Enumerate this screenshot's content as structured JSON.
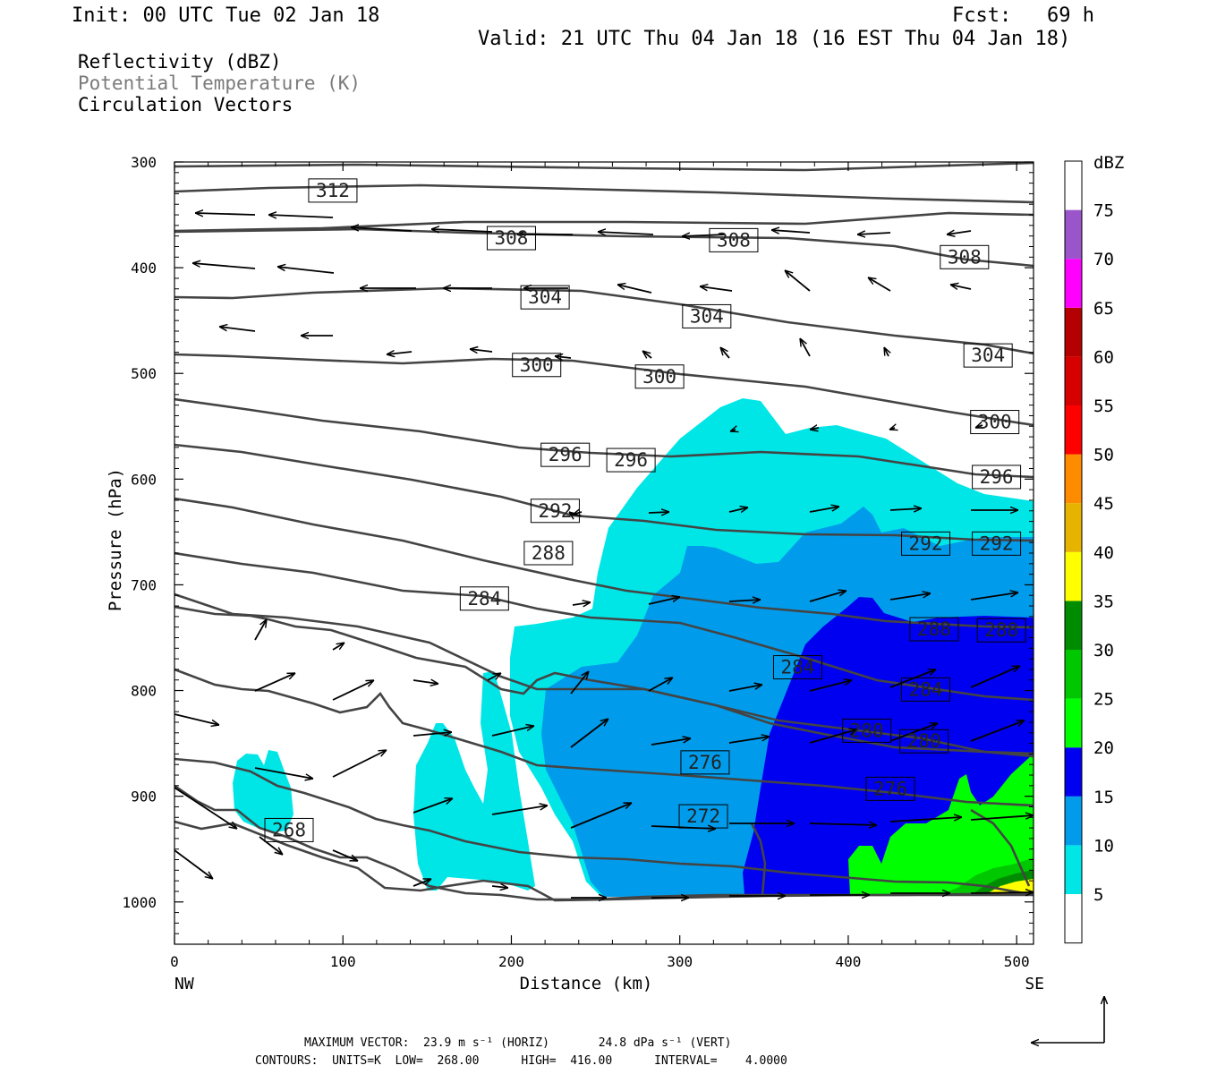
{
  "header": {
    "init": "Init: 00 UTC Tue 02 Jan 18",
    "fcst": "Fcst:   69 h",
    "valid": "Valid: 21 UTC Thu 04 Jan 18 (16 EST Thu 04 Jan 18)"
  },
  "legend": {
    "line1": "Reflectivity (dBZ)",
    "line2": "Potential Temperature (K)",
    "line3": "Circulation Vectors",
    "line2_color": "#7a7a7a"
  },
  "footer": {
    "line1": "MAXIMUM VECTOR:  23.9 m s⁻¹ (HORIZ)       24.8 dPa s⁻¹ (VERT)",
    "line2": "CONTOURS:  UNITS=K  LOW=  268.00      HIGH=  416.00      INTERVAL=    4.0000"
  },
  "chart_data": {
    "type": "cross-section",
    "xlabel": "Distance (km)",
    "ylabel": "Pressure (hPa)",
    "xlim": [
      0,
      510
    ],
    "ylim": [
      1040,
      300
    ],
    "x_ticks": [
      0,
      100,
      200,
      300,
      400,
      500
    ],
    "y_ticks": [
      300,
      400,
      500,
      600,
      700,
      800,
      900,
      1000
    ],
    "x_end_labels": {
      "left": "NW",
      "right": "SE"
    },
    "colorbar": {
      "unit": "dBZ",
      "levels": [
        5,
        10,
        15,
        20,
        25,
        30,
        35,
        40,
        45,
        50,
        55,
        60,
        65,
        70,
        75
      ],
      "colors": [
        "#ffffff",
        "#00e6e6",
        "#009ceb",
        "#0000f0",
        "#00ff00",
        "#00c800",
        "#008c00",
        "#ffff00",
        "#e6b400",
        "#ff8c00",
        "#ff0000",
        "#d60000",
        "#b40000",
        "#ff00ff",
        "#9955c9",
        "#ffffff"
      ]
    },
    "theta_labels": [
      {
        "value": "312",
        "x": 94,
        "p": 327
      },
      {
        "value": "308",
        "x": 200,
        "p": 372
      },
      {
        "value": "308",
        "x": 332,
        "p": 374
      },
      {
        "value": "308",
        "x": 469,
        "p": 390
      },
      {
        "value": "304",
        "x": 220,
        "p": 428
      },
      {
        "value": "304",
        "x": 316,
        "p": 446
      },
      {
        "value": "304",
        "x": 483,
        "p": 483
      },
      {
        "value": "300",
        "x": 215,
        "p": 492
      },
      {
        "value": "300",
        "x": 288,
        "p": 503
      },
      {
        "value": "300",
        "x": 487,
        "p": 546
      },
      {
        "value": "296",
        "x": 232,
        "p": 577
      },
      {
        "value": "296",
        "x": 271,
        "p": 582
      },
      {
        "value": "296",
        "x": 488,
        "p": 598
      },
      {
        "value": "292",
        "x": 226,
        "p": 630
      },
      {
        "value": "292",
        "x": 446,
        "p": 661
      },
      {
        "value": "292",
        "x": 488,
        "p": 661
      },
      {
        "value": "288",
        "x": 222,
        "p": 670
      },
      {
        "value": "288",
        "x": 451,
        "p": 742
      },
      {
        "value": "288",
        "x": 491,
        "p": 743
      },
      {
        "value": "284",
        "x": 184,
        "p": 713
      },
      {
        "value": "284",
        "x": 370,
        "p": 778
      },
      {
        "value": "284",
        "x": 446,
        "p": 799
      },
      {
        "value": "280",
        "x": 411,
        "p": 838
      },
      {
        "value": "280",
        "x": 445,
        "p": 848
      },
      {
        "value": "276",
        "x": 315,
        "p": 868
      },
      {
        "value": "276",
        "x": 425,
        "p": 893
      },
      {
        "value": "272",
        "x": 314,
        "p": 919
      },
      {
        "value": "268",
        "x": 68,
        "p": 932
      }
    ]
  }
}
